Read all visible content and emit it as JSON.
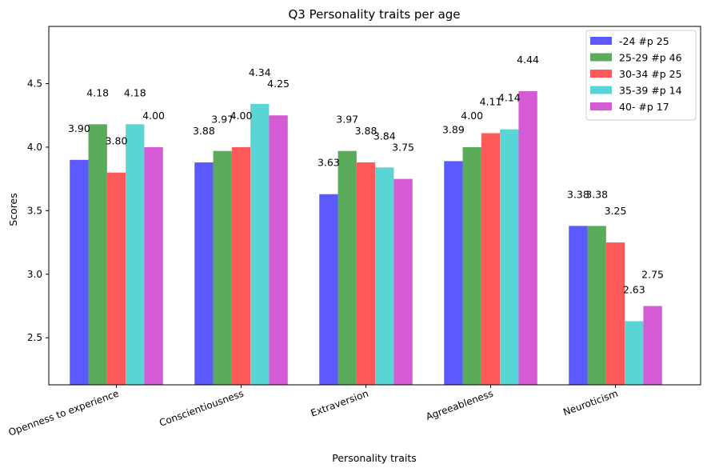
{
  "chart_data": {
    "type": "bar",
    "title": "Q3 Personality traits per age",
    "xlabel": "Personality traits",
    "ylabel": "Scores",
    "categories": [
      "Openness to experience",
      "Conscientiousness",
      "Extraversion",
      "Agreeableness",
      "Neuroticism"
    ],
    "ylim": [
      2.13,
      4.95
    ],
    "yticks": [
      2.5,
      3.0,
      3.5,
      4.0,
      4.5
    ],
    "ytick_labels": [
      "2.5",
      "3.0",
      "3.5",
      "4.0",
      "4.5"
    ],
    "grid": false,
    "legend_position": "top-right",
    "series": [
      {
        "name": "-24 #p 25",
        "color": "#5a5aff",
        "values": [
          3.9,
          3.88,
          3.63,
          3.89,
          3.38
        ],
        "labels": [
          "3.90",
          "3.88",
          "3.63",
          "3.89",
          "3.38"
        ]
      },
      {
        "name": "25-29 #p 46",
        "color": "#5aab5a",
        "values": [
          4.18,
          3.97,
          3.97,
          4.0,
          3.38
        ],
        "labels": [
          "4.18",
          "3.97",
          "3.97",
          "4.00",
          "3.38"
        ]
      },
      {
        "name": "30-34 #p 25",
        "color": "#ff5a5a",
        "values": [
          3.8,
          4.0,
          3.88,
          4.11,
          3.25
        ],
        "labels": [
          "3.80",
          "4.00",
          "3.88",
          "4.11",
          "3.25"
        ]
      },
      {
        "name": "35-39 #p 14",
        "color": "#5ad5d5",
        "values": [
          4.18,
          4.34,
          3.84,
          4.14,
          2.63
        ],
        "labels": [
          "4.18",
          "4.34",
          "3.84",
          "4.14",
          "2.63"
        ]
      },
      {
        "name": "40- #p 17",
        "color": "#d55ad5",
        "values": [
          4.0,
          4.25,
          3.75,
          4.44,
          2.75
        ],
        "labels": [
          "4.00",
          "4.25",
          "3.75",
          "4.44",
          "2.75"
        ]
      }
    ]
  }
}
